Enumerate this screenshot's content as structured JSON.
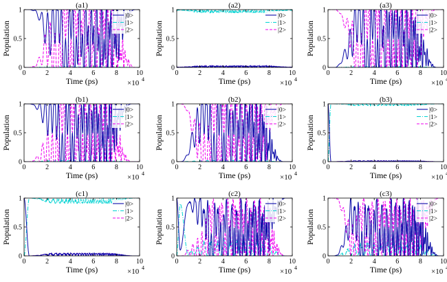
{
  "colors": {
    "state0": "#0a0aa8",
    "state1": "#00d2d2",
    "state2": "#ee00ee",
    "axis": "#000000"
  },
  "legend_labels": [
    "|0>",
    "|1>",
    "|2>"
  ],
  "common": {
    "xlabel": "Time (ps)",
    "ylabel": "Population",
    "x_multiplier": "×10",
    "x_exponent": "4",
    "xticks": [
      "0",
      "2",
      "4",
      "6",
      "8",
      "10"
    ],
    "yticks": [
      "0",
      "0.5",
      "1"
    ]
  },
  "chart_data": [
    {
      "title": "(a1)",
      "type": "line",
      "xlim": [
        0,
        10
      ],
      "ylim": [
        0,
        1
      ],
      "x_unit": "1e4 ps",
      "legend": "top-right",
      "pattern": {
        "kind": "osc02",
        "x_on": 0.5,
        "x_off": 9.6,
        "p1_peak": 0.02
      }
    },
    {
      "title": "(a2)",
      "type": "line",
      "xlim": [
        0,
        10
      ],
      "ylim": [
        0,
        1
      ],
      "x_unit": "1e4 ps",
      "legend": "top-right",
      "pattern": {
        "kind": "stay1",
        "x_on": 0.2,
        "x_off": 9.8,
        "noise": 0.04
      }
    },
    {
      "title": "(a3)",
      "type": "line",
      "xlim": [
        0,
        10
      ],
      "ylim": [
        0,
        1
      ],
      "x_unit": "1e4 ps",
      "legend": "top-right",
      "pattern": {
        "kind": "osc20",
        "x_on": 0.6,
        "x_off": 9.4,
        "p1_peak": 0.02
      }
    },
    {
      "title": "(b1)",
      "type": "line",
      "xlim": [
        0,
        10
      ],
      "ylim": [
        0,
        1
      ],
      "x_unit": "1e4 ps",
      "legend": "top-right",
      "pattern": {
        "kind": "osc02",
        "x_on": 0.5,
        "x_off": 9.3,
        "p1_peak": 0.02
      }
    },
    {
      "title": "(b2)",
      "type": "line",
      "xlim": [
        0,
        10
      ],
      "ylim": [
        0,
        1
      ],
      "x_unit": "1e4 ps",
      "legend": "top-right",
      "pattern": {
        "kind": "osc20",
        "x_on": 0.3,
        "x_off": 9.2,
        "p1_peak": 0.02
      }
    },
    {
      "title": "(b3)",
      "type": "line",
      "xlim": [
        0,
        10
      ],
      "ylim": [
        0,
        1
      ],
      "x_unit": "1e4 ps",
      "legend": "top-right",
      "pattern": {
        "kind": "to1",
        "t0": 0.25,
        "noise": 0.03
      }
    },
    {
      "title": "(c1)",
      "type": "line",
      "xlim": [
        0,
        10
      ],
      "ylim": [
        0,
        1
      ],
      "x_unit": "1e4 ps",
      "legend": "top-right",
      "pattern": {
        "kind": "to1",
        "t0": 0.45,
        "noise": 0.09
      }
    },
    {
      "title": "(c2)",
      "type": "line",
      "xlim": [
        0,
        10
      ],
      "ylim": [
        0,
        1
      ],
      "x_unit": "1e4 ps",
      "legend": "top-right",
      "pattern": {
        "kind": "osc_mix",
        "x_on": 0.4,
        "x_off": 9.4,
        "p1_peak": 0.3
      }
    },
    {
      "title": "(c3)",
      "type": "line",
      "xlim": [
        0,
        10
      ],
      "ylim": [
        0,
        1
      ],
      "x_unit": "1e4 ps",
      "legend": "top-right",
      "pattern": {
        "kind": "osc20",
        "x_on": 0.5,
        "x_off": 9.6,
        "p1_peak": 0.25
      }
    }
  ]
}
